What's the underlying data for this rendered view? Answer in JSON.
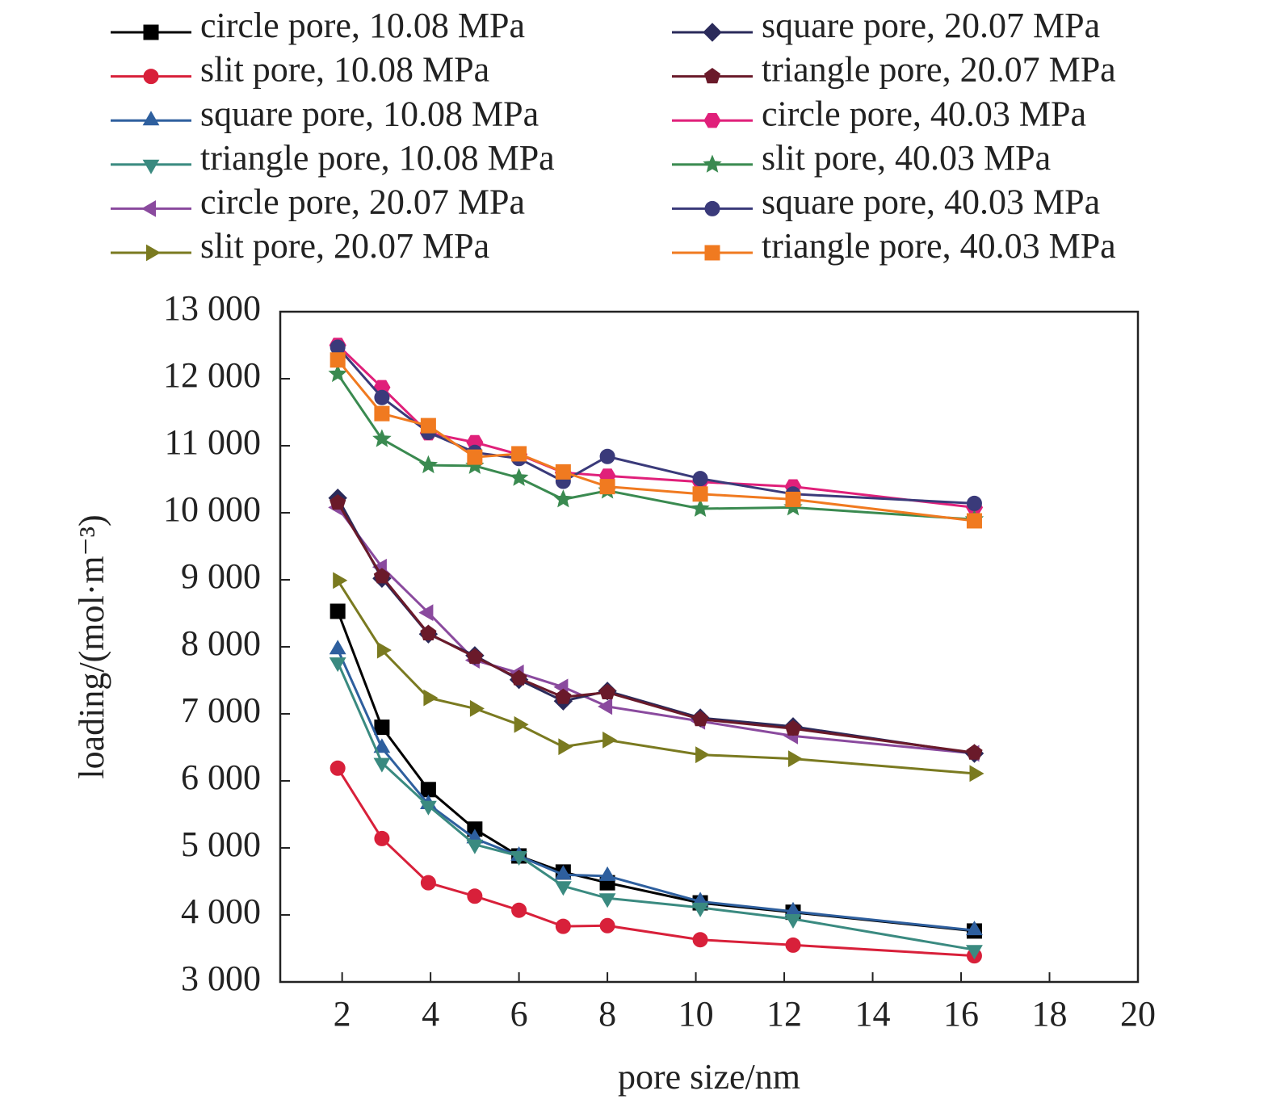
{
  "chart_data": {
    "type": "line",
    "xlabel": "pore size/nm",
    "ylabel": "loading/(mol·m⁻³)",
    "xlim": [
      0.6,
      20
    ],
    "ylim": [
      3000,
      13000
    ],
    "xticks": [
      2,
      4,
      6,
      8,
      10,
      12,
      14,
      16,
      18,
      20
    ],
    "yticks": [
      {
        "value": 3000,
        "label": "3 000"
      },
      {
        "value": 4000,
        "label": "4 000"
      },
      {
        "value": 5000,
        "label": "5 000"
      },
      {
        "value": 6000,
        "label": "6 000"
      },
      {
        "value": 7000,
        "label": "7 000"
      },
      {
        "value": 8000,
        "label": "8 000"
      },
      {
        "value": 9000,
        "label": "9 000"
      },
      {
        "value": 10000,
        "label": "10 000"
      },
      {
        "value": 11000,
        "label": "11 000"
      },
      {
        "value": 12000,
        "label": "12 000"
      },
      {
        "value": 13000,
        "label": "13 000"
      }
    ],
    "x": [
      1.9,
      2.9,
      3.95,
      5,
      6,
      7,
      8,
      10.1,
      12.2,
      16.3
    ],
    "legend": "top",
    "series": [
      {
        "name": "circle pore, 10.08 MPa",
        "color": "#000000",
        "marker": "square",
        "values": [
          8530,
          6800,
          5870,
          5280,
          4880,
          4640,
          4480,
          4180,
          4040,
          3760
        ]
      },
      {
        "name": "slit pore, 10.08 MPa",
        "color": "#d8203a",
        "marker": "circle",
        "values": [
          6190,
          5140,
          4480,
          4280,
          4070,
          3830,
          3840,
          3630,
          3550,
          3390
        ]
      },
      {
        "name": "square pore, 10.08 MPa",
        "color": "#2e5f9e",
        "marker": "triangle-up",
        "values": [
          7960,
          6490,
          5650,
          5140,
          4880,
          4600,
          4580,
          4200,
          4050,
          3770
        ]
      },
      {
        "name": "triangle pore, 10.08 MPa",
        "color": "#3a8a80",
        "marker": "triangle-down",
        "values": [
          7770,
          6270,
          5630,
          5050,
          4880,
          4430,
          4250,
          4110,
          3940,
          3480
        ]
      },
      {
        "name": "circle pore, 20.07 MPa",
        "color": "#8a4a9e",
        "marker": "triangle-left",
        "values": [
          10080,
          9190,
          8510,
          7800,
          7610,
          7400,
          7110,
          6890,
          6670,
          6410
        ]
      },
      {
        "name": "slit pore, 20.07 MPa",
        "color": "#7a7a20",
        "marker": "triangle-right",
        "values": [
          8990,
          7950,
          7240,
          7080,
          6840,
          6510,
          6610,
          6390,
          6330,
          6110
        ]
      },
      {
        "name": "square pore, 20.07 MPa",
        "color": "#2a2a5a",
        "marker": "diamond",
        "values": [
          10220,
          9020,
          8190,
          7870,
          7510,
          7190,
          7340,
          6940,
          6810,
          6410
        ]
      },
      {
        "name": "triangle pore, 20.07 MPa",
        "color": "#6a1a2a",
        "marker": "pentagon",
        "values": [
          10150,
          9050,
          8200,
          7850,
          7530,
          7250,
          7320,
          6920,
          6780,
          6420
        ]
      },
      {
        "name": "circle pore, 40.03 MPa",
        "color": "#e0207a",
        "marker": "hexagon",
        "values": [
          12500,
          11870,
          11190,
          11050,
          10870,
          10600,
          10550,
          10460,
          10390,
          10080
        ]
      },
      {
        "name": "slit pore, 40.03 MPa",
        "color": "#3a8a50",
        "marker": "star",
        "values": [
          12070,
          11100,
          10710,
          10700,
          10520,
          10200,
          10330,
          10060,
          10080,
          9900
        ]
      },
      {
        "name": "square pore, 40.03 MPa",
        "color": "#3a3a7a",
        "marker": "circle",
        "values": [
          12470,
          11720,
          11200,
          10900,
          10810,
          10470,
          10840,
          10510,
          10280,
          10140
        ]
      },
      {
        "name": "triangle pore, 40.03 MPa",
        "color": "#f07a20",
        "marker": "square",
        "values": [
          12280,
          11480,
          11300,
          10830,
          10880,
          10610,
          10390,
          10280,
          10200,
          9880
        ]
      }
    ]
  }
}
